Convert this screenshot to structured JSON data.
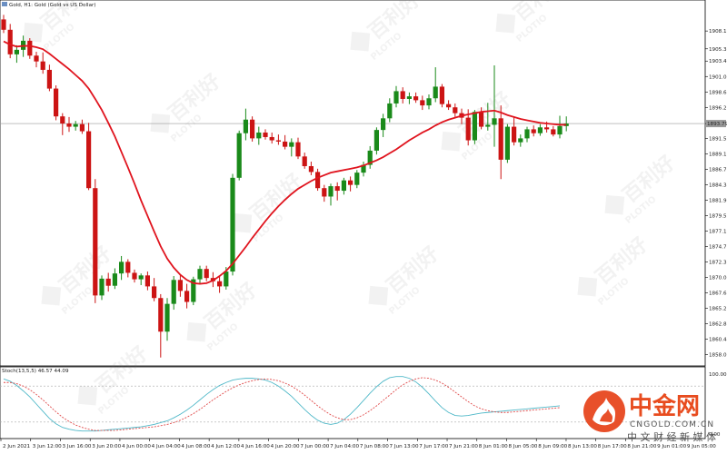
{
  "chart_data": [
    {
      "type": "candlestick",
      "title": "Gold, H1: Gold (Gold vs US Dollar)",
      "ylim": [
        1857.0,
        1911.5
      ],
      "y_ticks": [
        "1908.11",
        "1905.35",
        "1903.46",
        "1901.07",
        "1898.68",
        "1896.29",
        "1893.79",
        "1891.51",
        "1889.12",
        "1886.73",
        "1884.34",
        "1881.95",
        "1879.56",
        "1877.17",
        "1874.78",
        "1872.39",
        "1870.00",
        "1867.61",
        "1865.22",
        "1862.83",
        "1860.44",
        "1858.05"
      ],
      "current_price": "1893.79",
      "x_labels": [
        "2 Jun 2021",
        "3 Jun 12:00",
        "3 Jun 16:00",
        "3 Jun 20:00",
        "4 Jun 00:00",
        "4 Jun 04:00",
        "4 Jun 08:00",
        "4 Jun 12:00",
        "4 Jun 16:00",
        "4 Jun 20:00",
        "7 Jun 00:00",
        "7 Jun 04:00",
        "7 Jun 08:00",
        "7 Jun 13:00",
        "7 Jun 17:00",
        "7 Jun 21:00",
        "8 Jun 01:00",
        "8 Jun 05:00",
        "8 Jun 09:00",
        "8 Jun 13:00",
        "8 Jun 17:00",
        "8 Jun 21:00",
        "9 Jun 01:00",
        "9 Jun 05:00"
      ],
      "candles": [
        [
          1909.9,
          1910.6,
          1907.8,
          1908.3
        ],
        [
          1908.3,
          1909.2,
          1903.9,
          1904.5
        ],
        [
          1904.5,
          1905.9,
          1903.2,
          1905.2
        ],
        [
          1905.2,
          1907.4,
          1904.1,
          1906.6
        ],
        [
          1906.6,
          1907.0,
          1903.8,
          1904.3
        ],
        [
          1904.3,
          1904.9,
          1902.5,
          1903.4
        ],
        [
          1903.4,
          1904.8,
          1901.5,
          1902.1
        ],
        [
          1902.1,
          1902.9,
          1898.8,
          1899.2
        ],
        [
          1899.2,
          1899.7,
          1894.3,
          1894.9
        ],
        [
          1894.9,
          1895.4,
          1892.0,
          1893.8
        ],
        [
          1893.8,
          1894.8,
          1892.5,
          1893.3
        ],
        [
          1893.3,
          1894.2,
          1892.7,
          1893.7
        ],
        [
          1893.7,
          1894.4,
          1892.2,
          1892.6
        ],
        [
          1892.6,
          1893.9,
          1883.5,
          1883.8
        ],
        [
          1883.8,
          1885.2,
          1866.0,
          1867.2
        ],
        [
          1867.2,
          1870.3,
          1866.5,
          1869.8
        ],
        [
          1869.8,
          1870.7,
          1867.8,
          1868.7
        ],
        [
          1868.7,
          1871.4,
          1868.2,
          1870.6
        ],
        [
          1870.6,
          1873.3,
          1869.6,
          1872.4
        ],
        [
          1872.4,
          1872.8,
          1870.0,
          1870.7
        ],
        [
          1870.7,
          1871.2,
          1869.2,
          1869.7
        ],
        [
          1869.7,
          1870.6,
          1868.8,
          1870.3
        ],
        [
          1870.3,
          1870.9,
          1868.0,
          1868.6
        ],
        [
          1868.6,
          1869.9,
          1866.3,
          1866.8
        ],
        [
          1866.8,
          1867.4,
          1857.6,
          1861.6
        ],
        [
          1861.6,
          1866.8,
          1860.2,
          1865.9
        ],
        [
          1865.9,
          1870.2,
          1865.0,
          1869.6
        ],
        [
          1869.6,
          1870.3,
          1867.0,
          1867.9
        ],
        [
          1867.9,
          1869.0,
          1865.2,
          1866.2
        ],
        [
          1866.2,
          1870.1,
          1865.7,
          1869.7
        ],
        [
          1869.7,
          1871.8,
          1868.9,
          1871.3
        ],
        [
          1871.3,
          1871.8,
          1869.4,
          1869.9
        ],
        [
          1869.9,
          1870.8,
          1868.5,
          1869.4
        ],
        [
          1869.4,
          1870.2,
          1867.6,
          1868.6
        ],
        [
          1868.6,
          1871.6,
          1868.1,
          1870.9
        ],
        [
          1870.9,
          1886.0,
          1870.3,
          1885.4
        ],
        [
          1885.4,
          1892.7,
          1885.0,
          1892.3
        ],
        [
          1892.3,
          1896.1,
          1891.2,
          1894.4
        ],
        [
          1894.4,
          1894.9,
          1891.0,
          1891.5
        ],
        [
          1891.5,
          1893.3,
          1890.5,
          1892.4
        ],
        [
          1892.4,
          1892.9,
          1891.3,
          1891.7
        ],
        [
          1891.7,
          1892.4,
          1890.7,
          1891.2
        ],
        [
          1891.2,
          1892.1,
          1890.5,
          1891.0
        ],
        [
          1891.0,
          1892.0,
          1889.8,
          1890.2
        ],
        [
          1890.2,
          1891.5,
          1888.7,
          1890.9
        ],
        [
          1890.9,
          1891.6,
          1888.3,
          1888.7
        ],
        [
          1888.7,
          1889.3,
          1886.8,
          1887.2
        ],
        [
          1887.2,
          1887.9,
          1885.8,
          1886.3
        ],
        [
          1886.3,
          1886.8,
          1883.4,
          1883.8
        ],
        [
          1883.8,
          1884.3,
          1881.7,
          1882.5
        ],
        [
          1882.5,
          1884.5,
          1881.1,
          1884.1
        ],
        [
          1884.1,
          1884.7,
          1881.9,
          1883.4
        ],
        [
          1883.4,
          1885.4,
          1882.8,
          1885.0
        ],
        [
          1885.0,
          1885.6,
          1883.3,
          1884.3
        ],
        [
          1884.3,
          1886.6,
          1883.8,
          1886.2
        ],
        [
          1886.2,
          1887.9,
          1885.6,
          1887.4
        ],
        [
          1887.4,
          1890.3,
          1886.8,
          1889.6
        ],
        [
          1889.6,
          1893.2,
          1889.0,
          1892.8
        ],
        [
          1892.8,
          1895.3,
          1891.7,
          1894.6
        ],
        [
          1894.6,
          1897.7,
          1894.0,
          1896.9
        ],
        [
          1896.9,
          1899.6,
          1896.3,
          1898.8
        ],
        [
          1898.8,
          1899.4,
          1896.9,
          1897.6
        ],
        [
          1897.6,
          1898.6,
          1896.8,
          1898.0
        ],
        [
          1898.0,
          1898.6,
          1897.0,
          1897.4
        ],
        [
          1897.4,
          1898.1,
          1895.9,
          1896.6
        ],
        [
          1896.6,
          1898.3,
          1896.0,
          1897.7
        ],
        [
          1897.7,
          1902.5,
          1897.1,
          1899.5
        ],
        [
          1899.5,
          1899.9,
          1896.3,
          1896.8
        ],
        [
          1896.8,
          1897.4,
          1895.9,
          1896.3
        ],
        [
          1896.3,
          1896.9,
          1894.8,
          1895.4
        ],
        [
          1895.4,
          1896.1,
          1893.7,
          1894.7
        ],
        [
          1894.7,
          1896.0,
          1890.4,
          1891.2
        ],
        [
          1891.2,
          1895.9,
          1890.6,
          1895.6
        ],
        [
          1895.6,
          1896.3,
          1892.9,
          1893.3
        ],
        [
          1893.3,
          1897.0,
          1892.7,
          1893.6
        ],
        [
          1893.6,
          1902.8,
          1890.2,
          1894.6
        ],
        [
          1894.6,
          1896.6,
          1885.2,
          1888.2
        ],
        [
          1888.2,
          1893.7,
          1887.7,
          1893.3
        ],
        [
          1893.3,
          1894.8,
          1890.4,
          1890.9
        ],
        [
          1890.9,
          1892.1,
          1890.2,
          1891.5
        ],
        [
          1891.5,
          1893.3,
          1890.9,
          1892.9
        ],
        [
          1892.9,
          1893.5,
          1891.8,
          1892.3
        ],
        [
          1892.3,
          1893.7,
          1891.9,
          1893.2
        ],
        [
          1893.2,
          1894.1,
          1892.4,
          1892.9
        ],
        [
          1892.9,
          1893.4,
          1891.8,
          1892.1
        ],
        [
          1892.1,
          1895.0,
          1891.5,
          1893.4
        ],
        [
          1893.4,
          1894.9,
          1892.6,
          1893.8
        ]
      ],
      "moving_average": [
        1906.5,
        1906.0,
        1905.7,
        1905.8,
        1905.8,
        1905.6,
        1905.3,
        1904.6,
        1903.8,
        1903.0,
        1902.2,
        1901.3,
        1900.4,
        1899.2,
        1897.6,
        1895.9,
        1893.9,
        1891.8,
        1889.4,
        1887.0,
        1884.5,
        1881.9,
        1879.5,
        1877.1,
        1874.8,
        1872.9,
        1871.5,
        1870.4,
        1869.6,
        1869.1,
        1869.0,
        1869.1,
        1869.5,
        1870.2,
        1871.0,
        1872.1,
        1873.4,
        1874.7,
        1876.1,
        1877.4,
        1878.7,
        1879.9,
        1881.0,
        1882.0,
        1882.9,
        1883.7,
        1884.3,
        1884.9,
        1885.4,
        1885.8,
        1886.2,
        1886.4,
        1886.6,
        1886.8,
        1887.0,
        1887.3,
        1887.7,
        1888.1,
        1888.6,
        1889.2,
        1889.8,
        1890.5,
        1891.2,
        1891.8,
        1892.4,
        1892.9,
        1893.5,
        1894.0,
        1894.4,
        1894.7,
        1895.0,
        1895.2,
        1895.4,
        1895.6,
        1895.7,
        1895.8,
        1895.5,
        1895.1,
        1894.8,
        1894.5,
        1894.3,
        1894.1,
        1893.9,
        1893.8,
        1893.7,
        1893.6,
        1893.6
      ],
      "colors": {
        "up": "#1a8a1a",
        "down": "#cc1414",
        "ma": "#e0141e",
        "grid_line": "#9a9a9a"
      }
    },
    {
      "type": "line",
      "title": "Stoch(13,5,5) 46.57 44.09",
      "ylim": [
        0,
        100
      ],
      "y_ticks": [
        "100.00",
        "0.00"
      ],
      "levels": [
        80,
        20
      ],
      "series": [
        {
          "values": [
            92,
            88,
            81,
            72,
            62,
            50,
            38,
            26,
            17,
            11,
            8,
            6,
            5,
            5,
            5,
            6,
            7,
            8,
            9,
            10,
            11,
            12,
            14,
            16,
            19,
            22,
            27,
            33,
            40,
            48,
            57,
            66,
            74,
            81,
            86,
            90,
            92,
            93,
            93,
            92,
            90,
            86,
            80,
            72,
            63,
            52,
            41,
            31,
            23,
            18,
            16,
            18,
            24,
            33,
            44,
            56,
            68,
            79,
            88,
            94,
            96,
            96,
            93,
            87,
            78,
            67,
            55,
            44,
            36,
            31,
            30,
            31,
            33,
            35,
            36,
            37,
            38,
            39,
            40,
            41,
            42,
            43,
            44,
            45,
            46,
            47
          ],
          "color": "#4fb8c8"
        },
        {
          "values": [
            86,
            86,
            84,
            80,
            74,
            66,
            57,
            47,
            37,
            28,
            21,
            15,
            11,
            8,
            6,
            6,
            6,
            6,
            7,
            8,
            9,
            10,
            11,
            12,
            14,
            16,
            19,
            23,
            28,
            34,
            41,
            49,
            57,
            64,
            71,
            77,
            82,
            86,
            89,
            91,
            92,
            91,
            89,
            85,
            80,
            73,
            65,
            56,
            47,
            39,
            32,
            27,
            24,
            24,
            27,
            32,
            39,
            47,
            56,
            65,
            74,
            82,
            88,
            92,
            94,
            93,
            90,
            85,
            78,
            70,
            62,
            54,
            47,
            42,
            39,
            37,
            36,
            36,
            37,
            38,
            39,
            40,
            41,
            42,
            43,
            44
          ],
          "color": "#e04a4a"
        }
      ]
    }
  ],
  "watermark": {
    "brand": "PLOTIO",
    "cn_text": "百利好"
  },
  "logo": {
    "cn": "中金网",
    "domain": "CNGOLD.COM.CN",
    "tagline": "中 文 财 经 新 媒 体"
  }
}
